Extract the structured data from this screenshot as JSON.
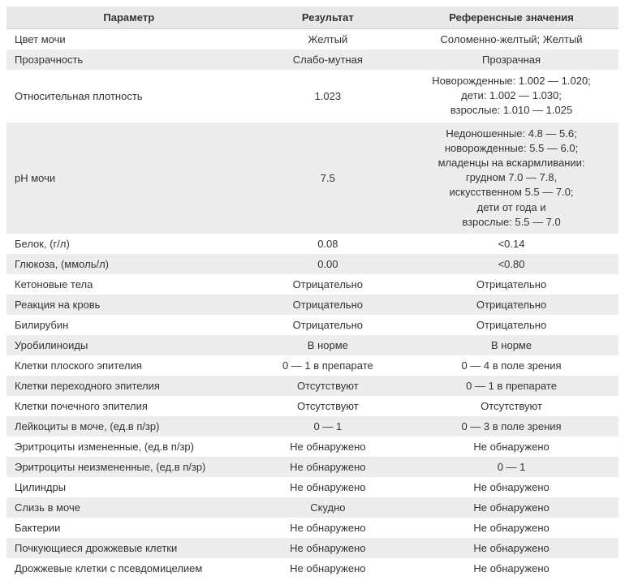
{
  "table": {
    "columns": [
      "Параметр",
      "Результат",
      "Референсные значения"
    ],
    "rows": [
      {
        "param": "Цвет мочи",
        "result": "Желтый",
        "reference": "Соломенно-желтый; Желтый"
      },
      {
        "param": "Прозрачность",
        "result": "Слабо-мутная",
        "reference": "Прозрачная"
      },
      {
        "param": "Относительная плотность",
        "result": "1.023",
        "reference": "Новорожденные: 1.002 — 1.020;\nдети: 1.002 — 1.030;\nвзрослые: 1.010 — 1.025"
      },
      {
        "param": "pH мочи",
        "result": "7.5",
        "reference": "Недоношенные: 4.8 — 5.6;\nноворожденные: 5.5 — 6.0;\nмладенцы на вскармливании:\nгрудном 7.0 — 7.8,\nискусственном 5.5 — 7.0;\nдети от года и\nвзрослые: 5.5 — 7.0"
      },
      {
        "param": "Белок, (г/л)",
        "result": "0.08",
        "reference": "<0.14"
      },
      {
        "param": "Глюкоза, (ммоль/л)",
        "result": "0.00",
        "reference": "<0.80"
      },
      {
        "param": "Кетоновые тела",
        "result": "Отрицательно",
        "reference": "Отрицательно"
      },
      {
        "param": "Реакция на кровь",
        "result": "Отрицательно",
        "reference": "Отрицательно"
      },
      {
        "param": "Билирубин",
        "result": "Отрицательно",
        "reference": "Отрицательно"
      },
      {
        "param": "Уробилиноиды",
        "result": "В норме",
        "reference": "В норме"
      },
      {
        "param": "Клетки плоского эпителия",
        "result": "0 — 1 в препарате",
        "reference": "0 — 4 в поле зрения"
      },
      {
        "param": "Клетки переходного эпителия",
        "result": "Отсутствуют",
        "reference": "0 — 1 в препарате"
      },
      {
        "param": "Клетки почечного эпителия",
        "result": "Отсутствуют",
        "reference": "Отсутствуют"
      },
      {
        "param": "Лейкоциты в моче, (ед.в п/зр)",
        "result": "0 — 1",
        "reference": "0 — 3 в поле зрения"
      },
      {
        "param": "Эритроциты измененные, (ед.в п/зр)",
        "result": "Не обнаружено",
        "reference": "Не обнаружено"
      },
      {
        "param": "Эритроциты неизмененные, (ед.в п/зр)",
        "result": "Не обнаружено",
        "reference": "0 — 1"
      },
      {
        "param": "Цилиндры",
        "result": "Не обнаружено",
        "reference": "Не обнаружено"
      },
      {
        "param": "Слизь в моче",
        "result": "Скудно",
        "reference": "Не обнаружено"
      },
      {
        "param": "Бактерии",
        "result": "Не обнаружено",
        "reference": "Не обнаружено"
      },
      {
        "param": "Почкующиеся дрожжевые клетки",
        "result": "Не обнаружено",
        "reference": "Не обнаружено"
      },
      {
        "param": "Дрожжевые клетки с псевдомицелием",
        "result": "Не обнаружено",
        "reference": "Не обнаружено"
      }
    ],
    "header_bg": "#e8e8e8",
    "row_odd_bg": "#ffffff",
    "row_even_bg": "#ededed",
    "text_color": "#333333",
    "font_size": 13
  }
}
